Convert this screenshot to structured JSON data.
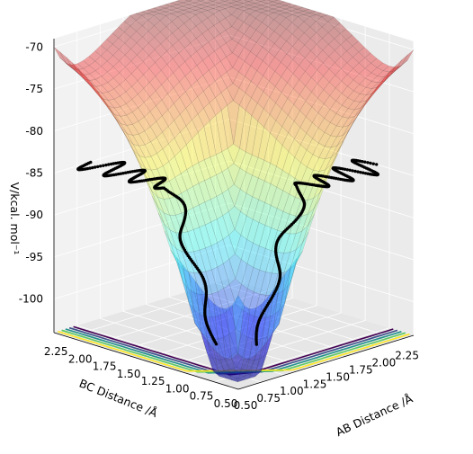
{
  "chart_data": {
    "type": "surface3d",
    "title": "",
    "xlabel": "AB Distance /Å",
    "ylabel": "BC Distance /Å",
    "zlabel": "V/kcal. mol⁻¹",
    "x_ticks": [
      "0.50",
      "0.75",
      "1.00",
      "1.25",
      "1.50",
      "1.75",
      "2.00",
      "2.25"
    ],
    "y_ticks": [
      "0.50",
      "0.75",
      "1.00",
      "1.25",
      "1.50",
      "1.75",
      "2.00",
      "2.25"
    ],
    "z_ticks": [
      "-70",
      "-75",
      "-80",
      "-85",
      "-90",
      "-95",
      "-100"
    ],
    "xlim": [
      0.5,
      2.4
    ],
    "ylim": [
      0.5,
      2.4
    ],
    "zlim": [
      -104,
      -69
    ],
    "grid": true,
    "colormap": "jet",
    "surface_alpha": 0.35,
    "contour_colormap": "viridis",
    "trajectory": {
      "name": "",
      "color": "#000000",
      "marker": "dot",
      "approx_start": [
        2.25,
        0.74,
        -84
      ],
      "approx_end": [
        0.74,
        2.25,
        -84
      ],
      "z_range": [
        -103,
        -84
      ]
    }
  }
}
